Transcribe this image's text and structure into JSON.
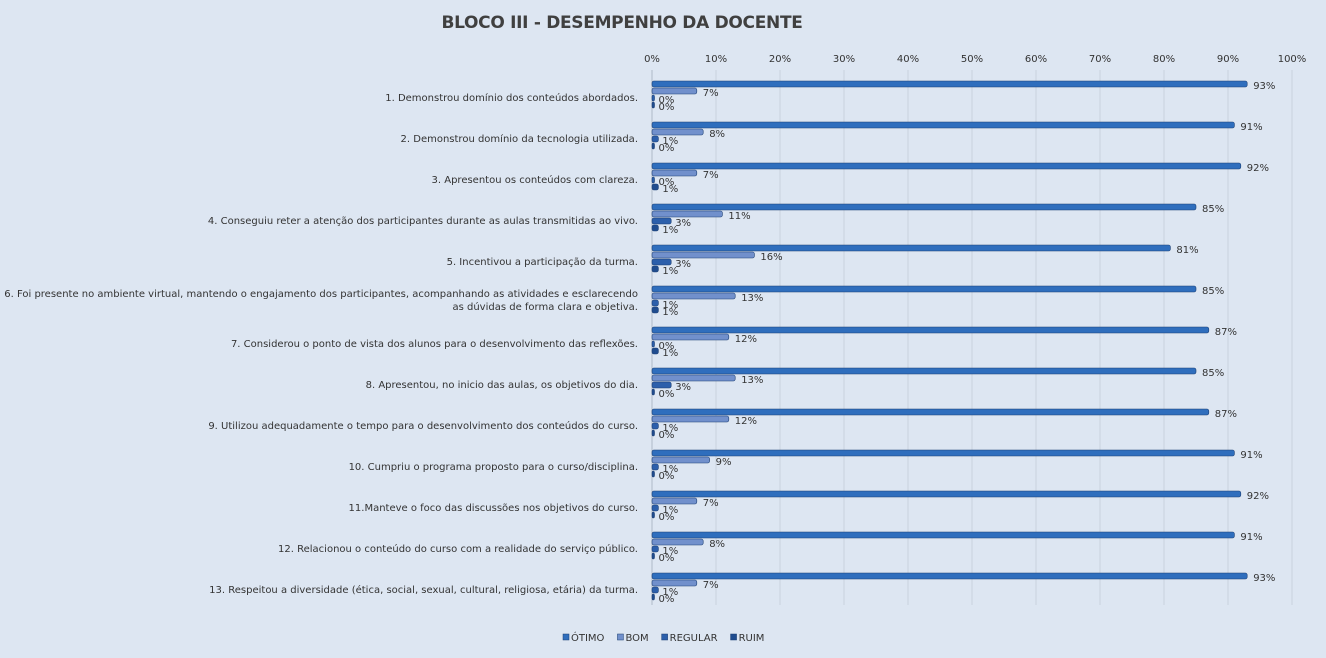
{
  "chart_data": {
    "type": "bar",
    "orientation": "horizontal",
    "title": "BLOCO III - DESEMPENHO  DA DOCENTE",
    "xlim": [
      0,
      100
    ],
    "x_ticks": [
      "0%",
      "10%",
      "20%",
      "30%",
      "40%",
      "50%",
      "60%",
      "70%",
      "80%",
      "90%",
      "100%"
    ],
    "grid": true,
    "legend_position": "bottom",
    "categories": [
      [
        "1. Demonstrou domínio dos conteúdos abordados."
      ],
      [
        "2. Demonstrou domínio da tecnologia utilizada."
      ],
      [
        "3. Apresentou os conteúdos com clareza."
      ],
      [
        "4. Conseguiu reter a atenção dos participantes durante as aulas transmitidas ao vivo."
      ],
      [
        "5. Incentivou a participação da turma."
      ],
      [
        "6. Foi presente no ambiente virtual, mantendo o engajamento dos participantes, acompanhando as atividades e esclarecendo",
        "as dúvidas de forma clara e objetiva."
      ],
      [
        "7. Considerou o ponto de vista dos alunos para o desenvolvimento das reflexões."
      ],
      [
        "8. Apresentou, no inicio das aulas, os objetivos do dia."
      ],
      [
        "9. Utilizou adequadamente o tempo para o desenvolvimento dos conteúdos do curso."
      ],
      [
        "10. Cumpriu o programa proposto para o curso/disciplina."
      ],
      [
        "11.Manteve o foco das discussões nos objetivos do curso."
      ],
      [
        "12. Relacionou o conteúdo do curso com a realidade do serviço público."
      ],
      [
        "13. Respeitou a diversidade (ética, social, sexual, cultural, religiosa, etária) da turma."
      ]
    ],
    "series": [
      {
        "name": "ÓTIMO",
        "color": "#2f6ebd",
        "values": [
          93,
          91,
          92,
          85,
          81,
          85,
          87,
          85,
          87,
          91,
          92,
          91,
          93
        ]
      },
      {
        "name": "BOM",
        "color": "#7190cc",
        "values": [
          7,
          8,
          7,
          11,
          16,
          13,
          12,
          13,
          12,
          9,
          7,
          8,
          7
        ]
      },
      {
        "name": "REGULAR",
        "color": "#2c5fab",
        "values": [
          0,
          1,
          0,
          3,
          3,
          1,
          0,
          3,
          1,
          1,
          1,
          1,
          1
        ]
      },
      {
        "name": "RUIM",
        "color": "#1f4c8f",
        "values": [
          0,
          0,
          1,
          1,
          1,
          1,
          1,
          0,
          0,
          0,
          0,
          0,
          0
        ]
      }
    ]
  }
}
